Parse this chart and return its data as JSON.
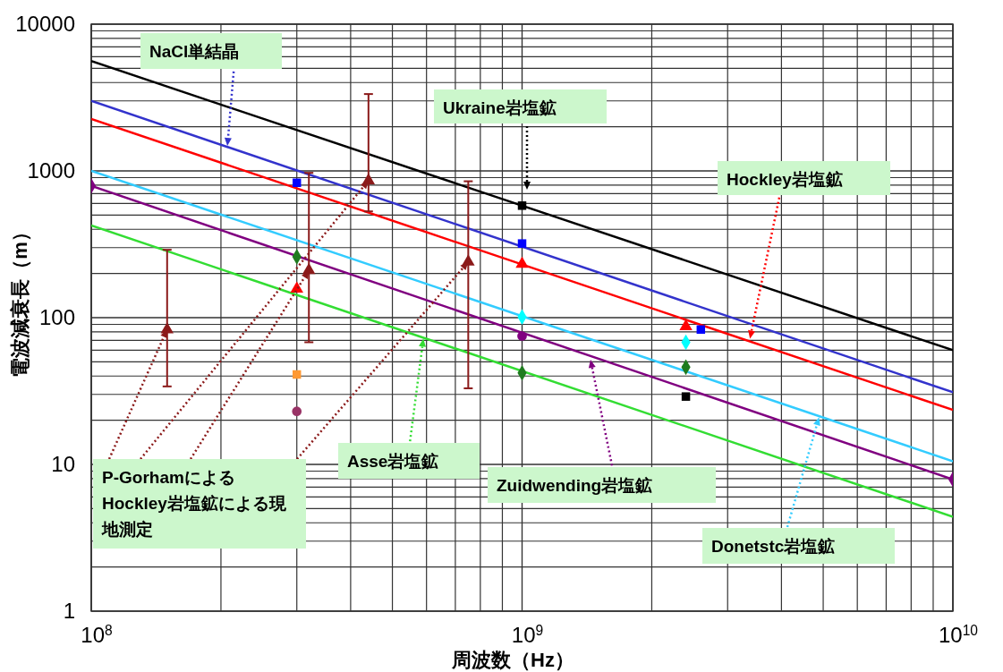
{
  "chart_data": {
    "type": "line",
    "xlabel": "周波数（Hz）",
    "ylabel": "電波減衰長（m）",
    "log": "xy",
    "grid": true,
    "xlim": [
      100000000,
      10000000000
    ],
    "xticks": [
      {
        "value": 100000000,
        "label": "10$^{8}$"
      },
      {
        "value": 1000000000,
        "label": "10$^{9}$"
      },
      {
        "value": 10000000000,
        "label": "10$^{10}$"
      }
    ],
    "ylim": [
      1,
      10000
    ],
    "yticks": [
      1,
      10,
      100,
      1000,
      10000
    ],
    "series": [
      {
        "color": "#000000",
        "marker": "none",
        "x": [
          100000000,
          10000000000
        ],
        "values": [
          5600,
          60
        ]
      },
      {
        "color": "#3333cc",
        "marker": "none",
        "x": [
          100000000,
          10000000000
        ],
        "values": [
          3000,
          31
        ]
      },
      {
        "color": "#ff0000",
        "marker": "none",
        "x": [
          100000000,
          10000000000
        ],
        "values": [
          2260,
          23.5
        ]
      },
      {
        "color": "#33ccff",
        "marker": "none",
        "x": [
          100000000,
          10000000000
        ],
        "values": [
          1000,
          10.5
        ]
      },
      {
        "color": "#800080",
        "marker": "diamond",
        "x": [
          100000000,
          10000000000
        ],
        "values": [
          790,
          7.9
        ]
      },
      {
        "color": "#33dd33",
        "marker": "none",
        "x": [
          100000000,
          10000000000
        ],
        "values": [
          425,
          4.4
        ]
      },
      {
        "type": "scatter",
        "color": "#000000",
        "marker": "square",
        "x": [
          1000000000,
          2400000000
        ],
        "values": [
          580,
          29
        ]
      },
      {
        "type": "scatter",
        "color": "#0000ff",
        "marker": "square",
        "x": [
          300000000,
          1000000000,
          2600000000
        ],
        "values": [
          830,
          320,
          83
        ]
      },
      {
        "type": "scatter",
        "color": "#ff0000",
        "marker": "triangle",
        "x": [
          300000000,
          1000000000,
          2400000000
        ],
        "values": [
          157,
          232,
          87
        ]
      },
      {
        "type": "scatter",
        "color": "#00ffff",
        "marker": "diamond",
        "x": [
          1000000000,
          2400000000
        ],
        "values": [
          101,
          68
        ]
      },
      {
        "type": "scatter",
        "color": "#800080",
        "marker": "circle",
        "x": [
          1000000000
        ],
        "values": [
          75
        ]
      },
      {
        "type": "scatter",
        "color": "#993366",
        "marker": "circle",
        "x": [
          300000000
        ],
        "values": [
          23
        ]
      },
      {
        "type": "scatter",
        "color": "#1e7b1e",
        "marker": "diamond",
        "x": [
          300000000,
          1000000000,
          2400000000
        ],
        "values": [
          260,
          42,
          46
        ]
      },
      {
        "type": "scatter",
        "color": "#ff9933",
        "marker": "square",
        "x": [
          300000000
        ],
        "values": [
          41
        ]
      },
      {
        "type": "scatter",
        "color": "#8b1a1a",
        "marker": "triangle",
        "x": [
          150000000,
          320000000,
          440000000,
          750000000
        ],
        "values": [
          83,
          210,
          860,
          240
        ],
        "errors": [
          [
            34,
            290
          ],
          [
            68,
            970
          ],
          [
            530,
            3340
          ],
          [
            33,
            850
          ]
        ]
      }
    ],
    "annotations": [
      {
        "text": "NaCl単結晶",
        "x": 207000000,
        "y": 1480
      },
      "Ukraine岩塩鉱",
      {
        "text": "Hockley岩塩鉱",
        "x": 3380000000,
        "y": 72
      },
      {
        "text": "P-GorhamによるHockley岩塩鉱による現地測定",
        "x": 320000000,
        "y": 210
      },
      {
        "text": "Asse岩塩鉱",
        "x": 590000000,
        "y": 72
      },
      "Zuidwending岩塩鉱",
      {
        "text": "Donetstc岩塩鉱",
        "x": 4890000000,
        "y": 21
      }
    ]
  }
}
